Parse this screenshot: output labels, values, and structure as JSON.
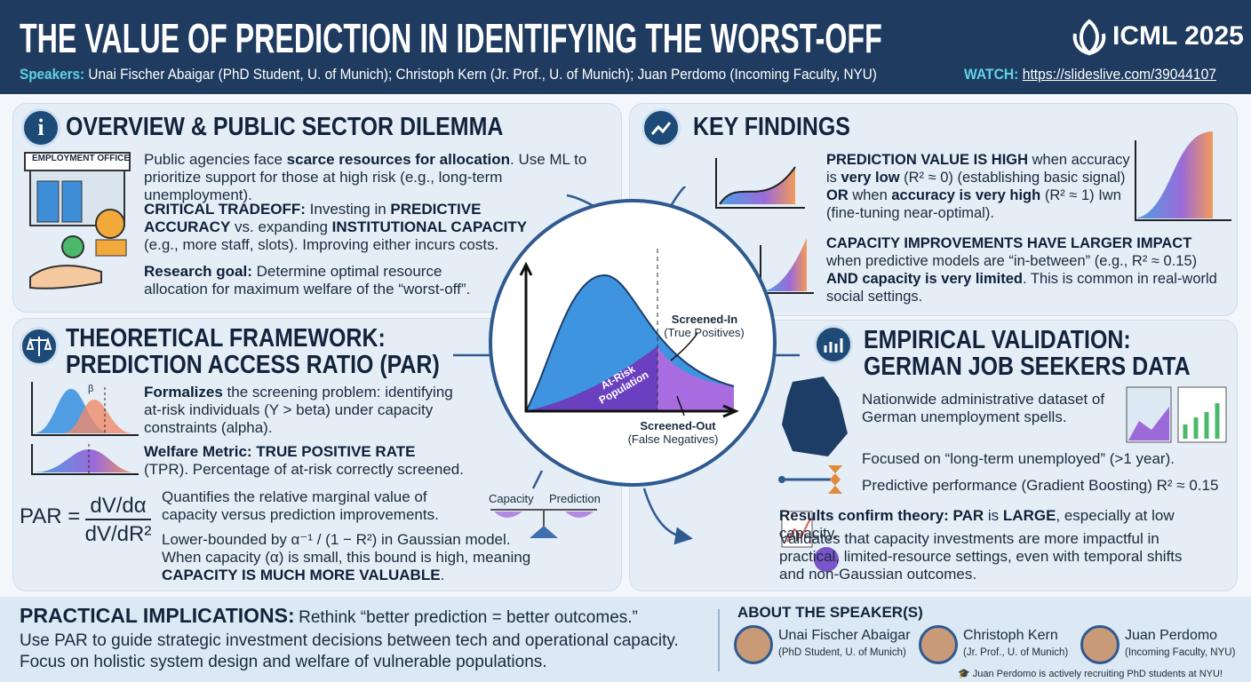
{
  "header": {
    "title": "THE VALUE OF PREDICTION IN IDENTIFYING THE WORST-OFF",
    "conference": "ICML 2025",
    "speakers_label": "Speakers:",
    "speakers": "Unai Fischer Abaigar (PhD Student, U. of Munich); Christoph Kern (Jr. Prof., U. of Munich); Juan Perdomo (Incoming Faculty, NYU)",
    "watch_label": "WATCH:",
    "url": "https://slideslive.com/39044107"
  },
  "overview": {
    "title": "OVERVIEW & PUBLIC SECTOR DILEMMA",
    "sign": "EMPLOYMENT OFFICE",
    "paragraphs": [
      [
        "Public agencies face ",
        {
          "b": "scarce resources for allocation"
        },
        ". Use ML to prioritize support for those at high risk (e.g., long-term unemployment)."
      ],
      [
        {
          "b": "CRITICAL TRADEOFF:"
        },
        " Investing in ",
        {
          "b": "PREDICTIVE ACCURACY"
        },
        " vs. expanding ",
        {
          "b": "INSTITUTIONAL CAPACITY"
        },
        " (e.g., more staff, slots). Improving either incurs costs."
      ],
      [
        {
          "b": "Research goal:"
        },
        " Determine optimal resource allocation for maximum welfare of the “worst-off”."
      ]
    ]
  },
  "findings": {
    "title": "KEY FINDINGS",
    "paragraphs": [
      [
        {
          "b": "PREDICTION VALUE IS HIGH"
        },
        " when accuracy is ",
        {
          "b": "very low"
        },
        " (R² ≈ 0) (establishing basic signal) ",
        {
          "b": "OR"
        },
        " when ",
        {
          "b": "accuracy is very high"
        },
        " (R² ≈ 1) Iwn (fine-tuning near-optimal)."
      ],
      [
        {
          "b": "CAPACITY IMPROVEMENTS HAVE LARGER IMPACT"
        },
        " when predictive models are “in-between” (e.g., R² ≈ 0.15) ",
        {
          "b": "AND capacity is very limited"
        },
        ". This is common in real-world social settings."
      ]
    ]
  },
  "framework": {
    "title_lines": [
      "THEORETICAL FRAMEWORK:",
      "PREDICTION ACCESS RATIO (PAR)"
    ],
    "beta": "β",
    "formula": {
      "lhs": "PAR =",
      "numerator": "dV/dα",
      "denominator": "dV/dR²"
    },
    "scale_labels": [
      "Capacity",
      "Prediction"
    ],
    "paragraphs": [
      [
        {
          "b": "Formalizes"
        },
        " the screening problem: identifying at-risk individuals (Y > beta) under capacity constraints (alpha)."
      ],
      [
        {
          "b": "Welfare Metric: TRUE POSITIVE RATE"
        },
        " (TPR). Percentage of at-risk correctly screened."
      ],
      [
        "Quantifies the relative marginal value of capacity versus prediction improvements."
      ],
      [
        "Lower-bounded by α⁻¹ / (1 − R²) in Gaussian model. When capacity (α) is small, this bound is high, meaning ",
        {
          "b": "CAPACITY IS MUCH MORE VALUABLE"
        },
        "."
      ]
    ]
  },
  "diagram": {
    "screened_in": "Screened-In",
    "screened_in_sub": "(True Positives)",
    "screened_out": "Screened-Out",
    "screened_out_sub": "(False Negatives)",
    "population": [
      "At-Risk",
      "Population"
    ]
  },
  "empirical": {
    "title_lines": [
      "EMPIRICAL VALIDATION:",
      "GERMAN JOB SEEKERS DATA"
    ],
    "paragraphs": [
      [
        "Nationwide administrative dataset of German unemployment spells."
      ],
      [
        "Focused on “long-term unemployed” (>1 year)."
      ],
      [
        "Predictive performance (Gradient Boosting) R² ≈ 0.15"
      ],
      [
        {
          "b": "Results confirm theory: PAR"
        },
        " is ",
        {
          "b": "LARGE"
        },
        ", especially at low capacity."
      ],
      [
        "Validates that capacity investments are more impactful in practical, limited-resource settings, even with temporal shifts and non-Gaussian outcomes."
      ]
    ]
  },
  "implications": {
    "title": "PRACTICAL IMPLICATIONS:",
    "lead": "Rethink “better prediction = better outcomes.”",
    "lines": [
      "Use PAR to guide strategic investment decisions between tech and operational capacity.",
      "Focus on holistic system design and welfare of vulnerable populations."
    ]
  },
  "speakers_box": {
    "title": "ABOUT THE SPEAKER(S)",
    "people": [
      {
        "name": "Unai Fischer Abaigar",
        "role": "(PhD Student, U. of Munich)"
      },
      {
        "name": "Christoph Kern",
        "role": "(Jr. Prof., U. of Munich)"
      },
      {
        "name": "Juan Perdomo",
        "role": "(Incoming Faculty, NYU)"
      }
    ],
    "note": "Juan Perdomo is actively recruiting PhD students at NYU!"
  }
}
